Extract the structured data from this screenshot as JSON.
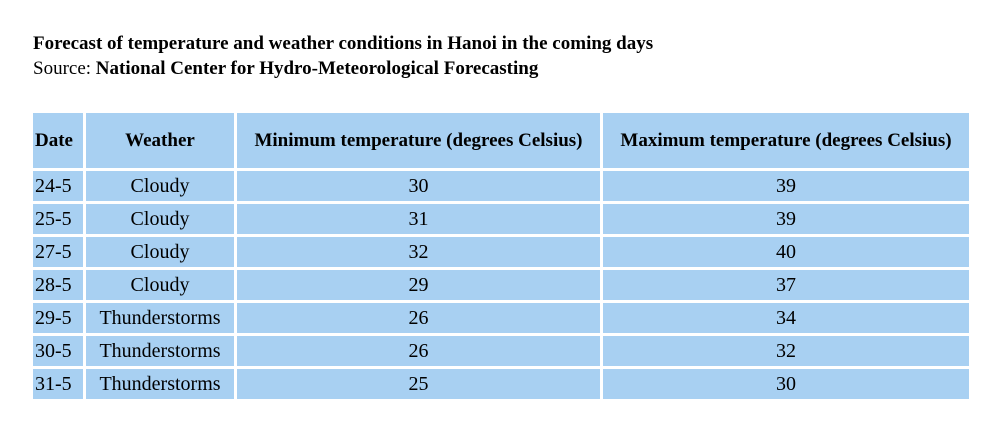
{
  "header": {
    "title": "Forecast of temperature and weather conditions in Hanoi in the coming days",
    "source_label": "Source:",
    "source": "National Center for Hydro-Meteorological Forecasting"
  },
  "table": {
    "columns": [
      "Date",
      "Weather",
      "Minimum temperature (degrees Celsius)",
      "Maximum temperature (degrees Celsius)"
    ],
    "rows": [
      [
        "24-5",
        "Cloudy",
        30,
        39
      ],
      [
        "25-5",
        "Cloudy",
        31,
        39
      ],
      [
        "27-5",
        "Cloudy",
        32,
        40
      ],
      [
        "28-5",
        "Cloudy",
        29,
        37
      ],
      [
        "29-5",
        "Thunderstorms",
        26,
        34
      ],
      [
        "30-5",
        "Thunderstorms",
        26,
        32
      ],
      [
        "31-5",
        "Thunderstorms",
        25,
        30
      ]
    ]
  }
}
